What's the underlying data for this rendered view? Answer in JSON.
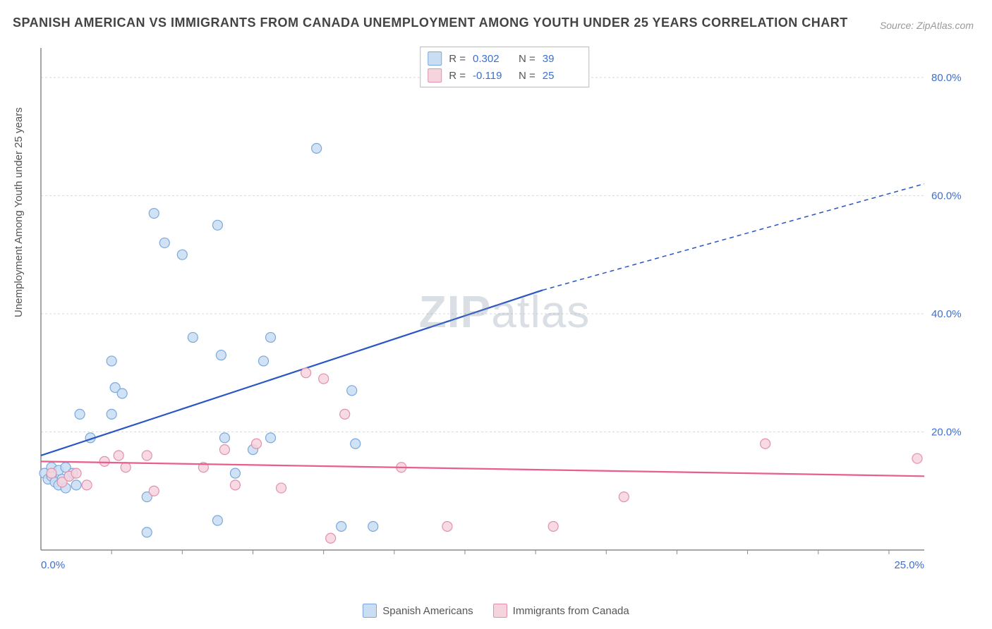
{
  "title": "SPANISH AMERICAN VS IMMIGRANTS FROM CANADA UNEMPLOYMENT AMONG YOUTH UNDER 25 YEARS CORRELATION CHART",
  "source": "Source: ZipAtlas.com",
  "ylabel": "Unemployment Among Youth under 25 years",
  "watermark_zip": "ZIP",
  "watermark_atlas": "atlas",
  "chart": {
    "type": "scatter",
    "xlim": [
      0,
      25
    ],
    "ylim": [
      0,
      85
    ],
    "x_axis_label_min": "0.0%",
    "x_axis_label_max": "25.0%",
    "y_ticks": [
      20,
      40,
      60,
      80
    ],
    "y_tick_labels": [
      "20.0%",
      "40.0%",
      "60.0%",
      "80.0%"
    ],
    "x_minor_ticks": [
      2,
      4,
      6,
      8,
      10,
      12,
      14,
      16,
      18,
      20,
      22,
      24
    ],
    "background_color": "#ffffff",
    "grid_color": "#d8d8d8",
    "axis_color": "#888888",
    "tick_label_color": "#3b6fd4",
    "marker_radius": 7,
    "marker_stroke_width": 1.2,
    "series": [
      {
        "key": "spanish",
        "label": "Spanish Americans",
        "fill": "#c9ddf3",
        "stroke": "#7aa8de",
        "line_color": "#2b57c5",
        "R": "0.302",
        "N": "39",
        "trend": {
          "x1": 0,
          "y1": 16,
          "x2_solid": 14.2,
          "y2_solid": 44,
          "x2": 25,
          "y2": 62,
          "width": 2.2
        },
        "points": [
          [
            0.1,
            13
          ],
          [
            0.2,
            12
          ],
          [
            0.3,
            12.5
          ],
          [
            0.3,
            14
          ],
          [
            0.4,
            11.5
          ],
          [
            0.5,
            13.5
          ],
          [
            0.5,
            11
          ],
          [
            0.6,
            12
          ],
          [
            0.7,
            14
          ],
          [
            0.7,
            10.5
          ],
          [
            0.8,
            12.5
          ],
          [
            0.9,
            13
          ],
          [
            1.0,
            11
          ],
          [
            1.1,
            23
          ],
          [
            1.4,
            19
          ],
          [
            2.0,
            23
          ],
          [
            2.1,
            27.5
          ],
          [
            2.3,
            26.5
          ],
          [
            2.0,
            32
          ],
          [
            3.0,
            9
          ],
          [
            3.2,
            57
          ],
          [
            3.5,
            52
          ],
          [
            3.0,
            3
          ],
          [
            4.0,
            50
          ],
          [
            4.3,
            36
          ],
          [
            5.0,
            55
          ],
          [
            5.1,
            33
          ],
          [
            5.2,
            19
          ],
          [
            5.0,
            5
          ],
          [
            5.5,
            13
          ],
          [
            6.0,
            17
          ],
          [
            6.3,
            32
          ],
          [
            6.5,
            36
          ],
          [
            6.5,
            19
          ],
          [
            7.8,
            68
          ],
          [
            8.5,
            4
          ],
          [
            8.8,
            27
          ],
          [
            8.9,
            18
          ],
          [
            9.4,
            4
          ]
        ]
      },
      {
        "key": "canada",
        "label": "Immigrants from Canada",
        "fill": "#f6d4de",
        "stroke": "#e391ab",
        "line_color": "#e85f8a",
        "R": "-0.119",
        "N": "25",
        "trend": {
          "x1": 0,
          "y1": 15,
          "x2_solid": 25,
          "y2_solid": 12.5,
          "x2": 25,
          "y2": 12.5,
          "width": 2.2
        },
        "points": [
          [
            0.3,
            13
          ],
          [
            0.6,
            11.5
          ],
          [
            0.8,
            12.5
          ],
          [
            1.0,
            13
          ],
          [
            1.3,
            11
          ],
          [
            1.8,
            15
          ],
          [
            2.2,
            16
          ],
          [
            2.4,
            14
          ],
          [
            3.0,
            16
          ],
          [
            3.2,
            10
          ],
          [
            4.6,
            14
          ],
          [
            5.2,
            17
          ],
          [
            5.5,
            11
          ],
          [
            6.1,
            18
          ],
          [
            6.8,
            10.5
          ],
          [
            7.5,
            30
          ],
          [
            8.0,
            29
          ],
          [
            8.2,
            2
          ],
          [
            8.6,
            23
          ],
          [
            10.2,
            14
          ],
          [
            11.5,
            4
          ],
          [
            14.5,
            4
          ],
          [
            16.5,
            9
          ],
          [
            20.5,
            18
          ],
          [
            24.8,
            15.5
          ]
        ]
      }
    ]
  },
  "top_legend_rows": [
    {
      "swatch_series": "spanish",
      "R_label": "R =",
      "N_label": "N ="
    },
    {
      "swatch_series": "canada",
      "R_label": "R =",
      "N_label": "N ="
    }
  ]
}
